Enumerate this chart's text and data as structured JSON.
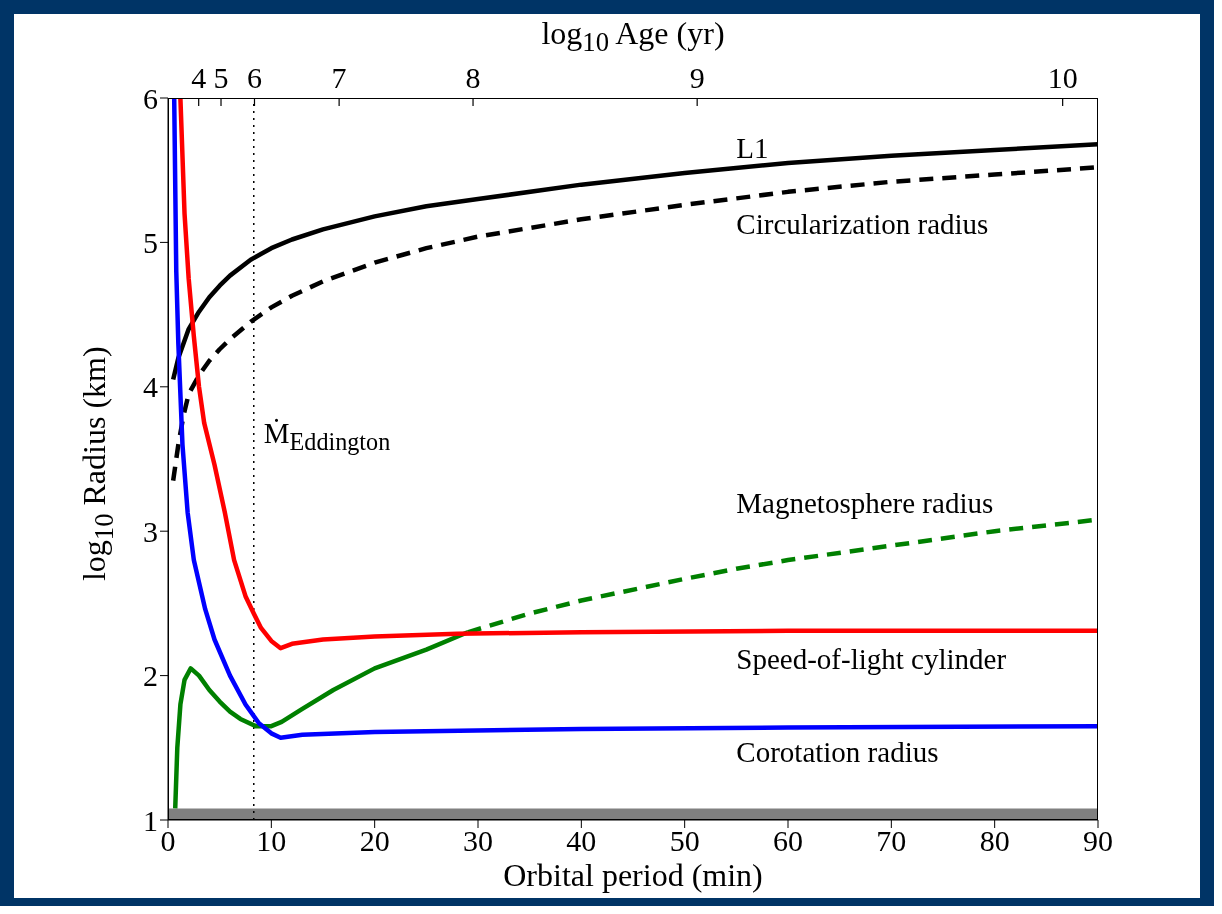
{
  "chart_data": {
    "type": "line",
    "xlabel": "Orbital period (min)",
    "ylabel": "log$_{10}$ Radius (km)",
    "x2label": "log$_{10}$ Age (yr)",
    "xlim": [
      0,
      90
    ],
    "xticks": [
      0,
      10,
      20,
      30,
      40,
      50,
      60,
      70,
      80,
      90
    ],
    "ylim": [
      1,
      6
    ],
    "yticks": [
      1,
      2,
      3,
      4,
      5,
      6
    ],
    "annotations": [
      "4",
      "5",
      "6",
      "7",
      "8",
      "9",
      "10"
    ],
    "series": [
      {
        "name": "L1",
        "color": "#000000",
        "line_style": "solid",
        "x": [
          0.5,
          1,
          1.5,
          2,
          3,
          4,
          5,
          6,
          8,
          10,
          12,
          15,
          20,
          25,
          30,
          40,
          50,
          60,
          70,
          80,
          90
        ],
        "values": [
          4.05,
          4.2,
          4.3,
          4.4,
          4.52,
          4.62,
          4.7,
          4.77,
          4.88,
          4.96,
          5.02,
          5.09,
          5.18,
          5.25,
          5.3,
          5.4,
          5.48,
          5.55,
          5.6,
          5.64,
          5.68
        ]
      },
      {
        "name": "Circularization radius",
        "color": "#000000",
        "line_style": "dashed",
        "x": [
          0.5,
          1,
          1.5,
          2,
          3,
          4,
          5,
          6,
          8,
          10,
          12,
          15,
          20,
          25,
          30,
          40,
          50,
          60,
          70,
          80,
          90
        ],
        "values": [
          3.35,
          3.6,
          3.8,
          3.95,
          4.08,
          4.18,
          4.26,
          4.33,
          4.45,
          4.55,
          4.63,
          4.73,
          4.86,
          4.96,
          5.04,
          5.16,
          5.26,
          5.35,
          5.42,
          5.47,
          5.52
        ]
      },
      {
        "color": "#008000",
        "line_style": "solid",
        "x": [
          0.7,
          0.9,
          1.2,
          1.6,
          2.2,
          3,
          4,
          5,
          6,
          7,
          8.5,
          10,
          11,
          13,
          16,
          20,
          25,
          29
        ],
        "values": [
          1.08,
          1.5,
          1.8,
          1.97,
          2.05,
          2.0,
          1.9,
          1.82,
          1.75,
          1.7,
          1.65,
          1.65,
          1.68,
          1.77,
          1.9,
          2.05,
          2.18,
          2.3
        ]
      },
      {
        "name": "Magnetosphere radius",
        "color": "#008000",
        "line_style": "dashed",
        "x": [
          29,
          35,
          40,
          50,
          55,
          60,
          70,
          80,
          90
        ],
        "values": [
          2.3,
          2.43,
          2.52,
          2.67,
          2.74,
          2.8,
          2.9,
          3.0,
          3.08
        ]
      },
      {
        "name": "Speed-of-light cylinder",
        "color": "#ff0000",
        "line_style": "solid",
        "x": [
          1.2,
          1.6,
          2,
          2.5,
          3,
          3.5,
          4.5,
          5.5,
          6.4,
          7.5,
          8.3,
          9,
          10,
          10.9,
          12,
          15,
          20,
          28,
          40,
          60,
          90
        ],
        "values": [
          6.0,
          5.2,
          4.75,
          4.35,
          4.0,
          3.75,
          3.46,
          3.13,
          2.8,
          2.55,
          2.43,
          2.33,
          2.24,
          2.19,
          2.22,
          2.25,
          2.27,
          2.29,
          2.3,
          2.31,
          2.31
        ]
      },
      {
        "name": "Corotation radius",
        "color": "#0000ff",
        "line_style": "solid",
        "x": [
          0.6,
          0.8,
          1,
          1.4,
          1.9,
          2.5,
          3.6,
          4.5,
          6,
          7.5,
          8.8,
          10,
          10.9,
          13,
          20,
          40,
          60,
          90
        ],
        "values": [
          6.0,
          4.8,
          4.3,
          3.6,
          3.13,
          2.8,
          2.46,
          2.25,
          2.0,
          1.8,
          1.67,
          1.6,
          1.57,
          1.59,
          1.61,
          1.63,
          1.64,
          1.65
        ]
      }
    ],
    "bands": [
      {
        "axis": "y",
        "from": 1,
        "to": 1.08,
        "color": "#808080"
      }
    ],
    "ref_lines": [
      {
        "axis": "x",
        "value": 8.3,
        "label": "Ṁ$_{Eddington}$",
        "color": "#000000",
        "line_style": "dotted"
      }
    ]
  }
}
